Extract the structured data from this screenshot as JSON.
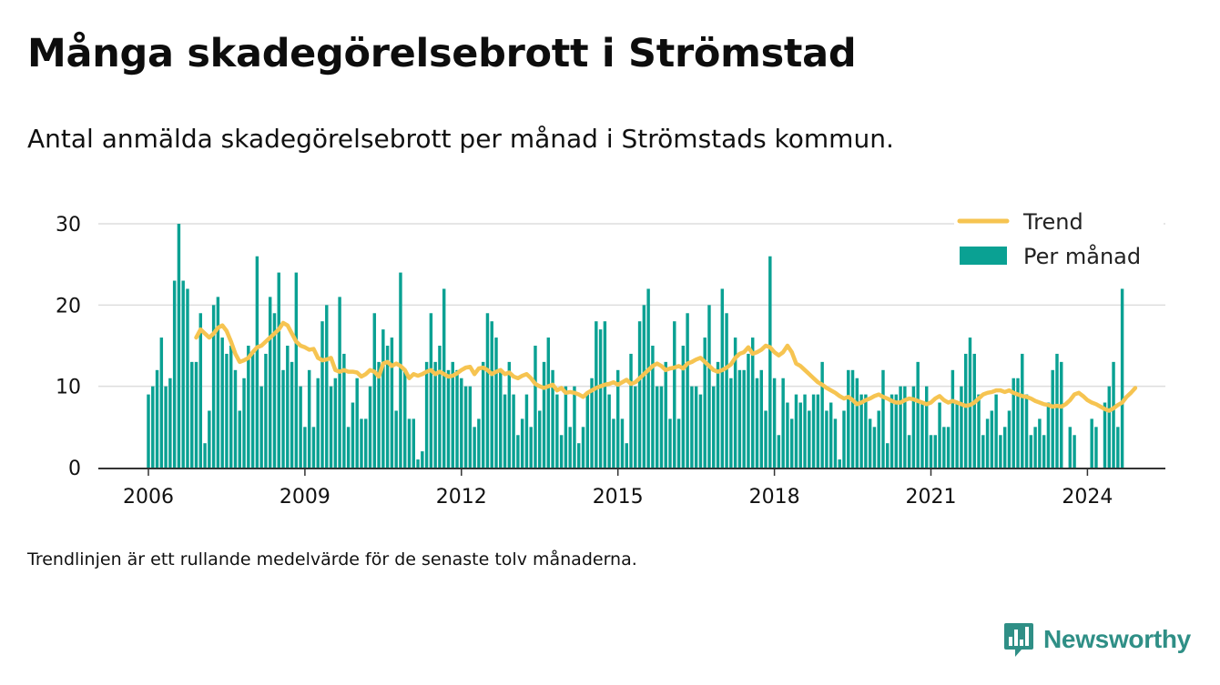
{
  "header": {
    "title": "Många skadegörelsebrott i Strömstad",
    "subtitle": "Antal anmälda skadegörelsebrott per månad i Strömstads kommun."
  },
  "footnote": "Trendlinjen är ett rullande medelvärde för de senaste tolv månaderna.",
  "brand": {
    "name": "Newsworthy",
    "logo_icon": "newsworthy-chart-bubble-icon"
  },
  "colors": {
    "bars": "#0aa193",
    "trend": "#f6c451",
    "grid": "#dddddd",
    "axis": "#333333",
    "text": "#111111",
    "brand": "#2f8f86"
  },
  "chart_data": {
    "type": "bar",
    "x_start": "2006-01",
    "x_end": "2024-07",
    "xticks": [
      "2006",
      "2009",
      "2012",
      "2015",
      "2018",
      "2021",
      "2024"
    ],
    "yticks": [
      "0",
      "10",
      "20",
      "30"
    ],
    "ylim": [
      0,
      30
    ],
    "grid": true,
    "legend_position": "top-right",
    "series": [
      {
        "name": "Per månad",
        "type": "bar",
        "values": [
          9,
          10,
          12,
          16,
          10,
          11,
          23,
          30,
          23,
          22,
          13,
          13,
          19,
          3,
          7,
          20,
          21,
          16,
          14,
          15,
          12,
          7,
          11,
          15,
          14,
          26,
          10,
          14,
          21,
          19,
          24,
          12,
          15,
          13,
          24,
          10,
          5,
          12,
          5,
          11,
          18,
          20,
          10,
          11,
          21,
          14,
          5,
          8,
          11,
          6,
          6,
          10,
          19,
          13,
          17,
          15,
          16,
          7,
          24,
          12,
          6,
          6,
          1,
          2,
          13,
          19,
          13,
          15,
          22,
          12,
          13,
          12,
          11,
          10,
          10,
          5,
          6,
          13,
          19,
          18,
          16,
          12,
          9,
          13,
          9,
          4,
          6,
          9,
          5,
          15,
          7,
          13,
          16,
          12,
          9,
          4,
          10,
          5,
          10,
          3,
          5,
          9,
          11,
          18,
          17,
          18,
          9,
          6,
          12,
          6,
          3,
          14,
          10,
          18,
          20,
          22,
          15,
          10,
          10,
          13,
          6,
          18,
          6,
          15,
          19,
          10,
          10,
          9,
          16,
          20,
          10,
          13,
          22,
          19,
          11,
          16,
          12,
          12,
          14,
          16,
          11,
          12,
          7,
          26,
          11,
          4,
          11,
          8,
          6,
          9,
          8,
          9,
          7,
          9,
          9,
          13,
          7,
          8,
          6,
          1,
          7,
          12,
          12,
          11,
          9,
          9,
          6,
          5,
          7,
          12,
          3,
          9,
          9,
          10,
          10,
          4,
          10,
          13,
          8,
          10,
          4,
          4,
          8,
          5,
          5,
          12,
          8,
          10,
          14,
          16,
          14,
          9,
          4,
          6,
          7,
          9,
          4,
          5,
          7,
          11,
          11,
          14,
          9,
          4,
          5,
          6,
          4,
          8,
          12,
          14,
          13,
          0,
          5,
          4,
          0,
          0,
          0,
          6,
          5,
          0,
          8,
          10,
          13,
          5,
          22
        ]
      },
      {
        "name": "Trend",
        "type": "line",
        "start": "2006-12",
        "values": [
          16,
          17,
          16.5,
          16,
          16.5,
          17.2,
          17.5,
          16.8,
          15.5,
          14,
          13,
          13.2,
          13.5,
          14.2,
          14.8,
          15,
          15.5,
          16,
          16.5,
          17,
          17.8,
          17.5,
          16.5,
          15.5,
          15,
          14.8,
          14.5,
          14.6,
          13.5,
          13.2,
          13.3,
          13.5,
          12,
          11.8,
          12,
          11.8,
          11.8,
          11.7,
          11.2,
          11.5,
          12,
          11.8,
          11.2,
          12.8,
          13,
          12.5,
          12.8,
          12.5,
          12,
          11,
          11.5,
          11.3,
          11.5,
          11.8,
          12,
          11.5,
          11.8,
          11.5,
          11.2,
          11.3,
          11.6,
          12,
          12.3,
          12.4,
          11.5,
          12.2,
          12.3,
          12,
          11.5,
          11.8,
          12,
          11.5,
          11.7,
          11.2,
          11,
          11.3,
          11.5,
          11,
          10.3,
          10,
          9.8,
          10,
          10.2,
          9.5,
          9.8,
          9.2,
          9.3,
          9.2,
          9,
          8.7,
          9.2,
          9.5,
          9.8,
          10,
          10.2,
          10.3,
          10.5,
          10.2,
          10.5,
          10.8,
          10.3,
          10.5,
          11,
          11.5,
          12,
          12.5,
          12.8,
          12.5,
          12,
          12.2,
          12.3,
          12.5,
          12.2,
          12.8,
          13,
          13.3,
          13.5,
          13,
          12.5,
          12,
          11.8,
          12,
          12.3,
          12.7,
          13.5,
          14,
          14.2,
          14.8,
          14,
          14.2,
          14.5,
          15,
          14.8,
          14.2,
          13.8,
          14.2,
          15,
          14.2,
          12.8,
          12.5,
          12,
          11.5,
          11,
          10.5,
          10.2,
          9.8,
          9.5,
          9.2,
          8.8,
          8.5,
          8.7,
          8.3,
          7.8,
          8,
          8.3,
          8.5,
          8.8,
          9,
          8.7,
          8.5,
          8.2,
          8,
          8,
          8.3,
          8.5,
          8.4,
          8.2,
          8,
          7.8,
          8,
          8.5,
          8.8,
          8.3,
          8,
          8.2,
          8,
          7.8,
          7.6,
          7.7,
          8,
          8.5,
          9,
          9.2,
          9.3,
          9.5,
          9.5,
          9.3,
          9.5,
          9.2,
          9,
          8.8,
          8.7,
          8.5,
          8.2,
          8,
          7.8,
          7.7,
          7.5,
          7.6,
          7.5,
          7.8,
          8.3,
          9,
          9.2,
          8.8,
          8.3,
          8,
          7.8,
          7.5,
          7.2,
          7,
          7.3,
          7.7,
          8,
          8.7,
          9.2,
          9.8
        ]
      }
    ]
  }
}
